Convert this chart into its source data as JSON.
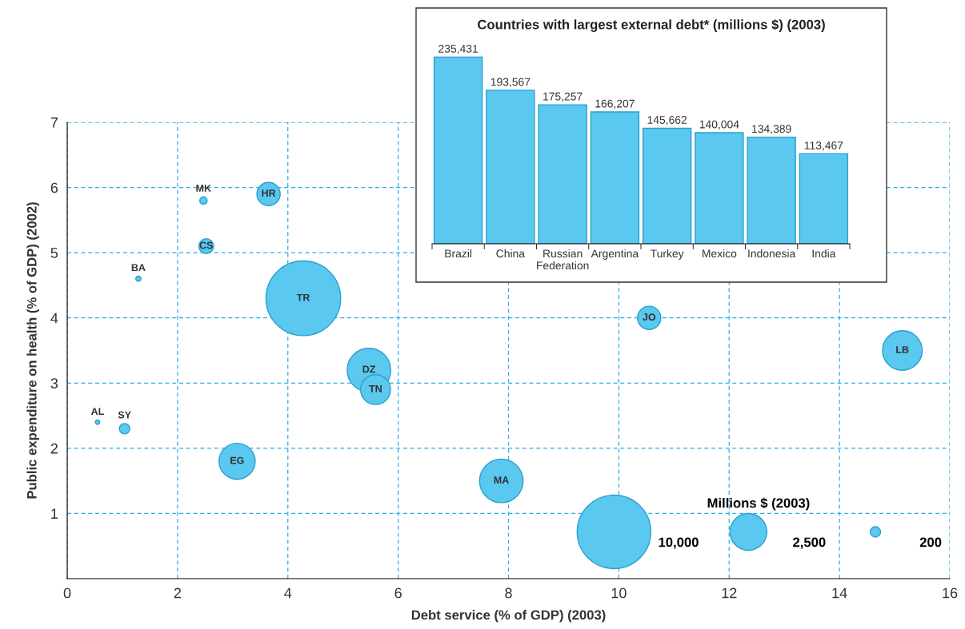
{
  "chart_data": [
    {
      "type": "bubble",
      "xlabel": "Debt service (% of GDP) (2003)",
      "ylabel": "Public expenditure on health (% of GDP) (2002)",
      "legend_title": "Millions $ (2003)",
      "x": [
        3.65,
        2.47,
        2.52,
        1.29,
        4.28,
        5.47,
        5.59,
        0.55,
        1.04,
        3.08,
        7.87,
        10.55,
        15.14
      ],
      "values": [
        5.9,
        5.8,
        5.1,
        4.6,
        4.3,
        3.2,
        2.9,
        2.4,
        2.3,
        1.8,
        1.5,
        4.0,
        3.5
      ],
      "sizes": [
        1000,
        100,
        400,
        50,
        10300,
        3500,
        1650,
        35,
        200,
        2400,
        3500,
        1000,
        2900
      ],
      "size_legend": [
        {
          "value": 10000,
          "label": "10,000"
        },
        {
          "value": 2500,
          "label": "2,500"
        },
        {
          "value": 200,
          "label": "200"
        }
      ],
      "color": "#5bc8f0",
      "annotations": [
        {
          "text": "HR",
          "x": 3.65,
          "y": 5.9
        },
        {
          "text": "MK",
          "x": 2.47,
          "y": 5.8
        },
        {
          "text": "CS",
          "x": 2.52,
          "y": 5.1
        },
        {
          "text": "BA",
          "x": 1.29,
          "y": 4.6
        },
        {
          "text": "TR",
          "x": 4.28,
          "y": 4.3
        },
        {
          "text": "DZ",
          "x": 5.47,
          "y": 3.2
        },
        {
          "text": "TN",
          "x": 5.59,
          "y": 2.9
        },
        {
          "text": "AL",
          "x": 0.55,
          "y": 2.4
        },
        {
          "text": "SY",
          "x": 1.04,
          "y": 2.3
        },
        {
          "text": "EG",
          "x": 3.08,
          "y": 1.8
        },
        {
          "text": "MA",
          "x": 7.87,
          "y": 1.5
        },
        {
          "text": "JO",
          "x": 10.55,
          "y": 4.0
        },
        {
          "text": "LB",
          "x": 15.14,
          "y": 3.5
        }
      ],
      "xlim": [
        0,
        16
      ],
      "ylim": [
        0,
        7
      ],
      "xticks": [
        0,
        2,
        4,
        6,
        8,
        10,
        12,
        14,
        16
      ],
      "yticks": [
        1,
        2,
        3,
        4,
        5,
        6,
        7
      ],
      "grid": true
    },
    {
      "type": "bar",
      "title": "Countries with largest external debt* (millions $) (2003)",
      "categories": [
        "Brazil",
        "China",
        "Russian\nFederation",
        "Argentina",
        "Turkey",
        "Mexico",
        "Indonesia",
        "India"
      ],
      "values": [
        235431,
        193567,
        175257,
        166207,
        145662,
        140004,
        134389,
        113467
      ],
      "value_labels": [
        "235,431",
        "193,567",
        "175,257",
        "166,207",
        "145,662",
        "140,004",
        "134,389",
        "113,467"
      ],
      "color": "#5bc8f0",
      "tick_labels": "x"
    }
  ]
}
